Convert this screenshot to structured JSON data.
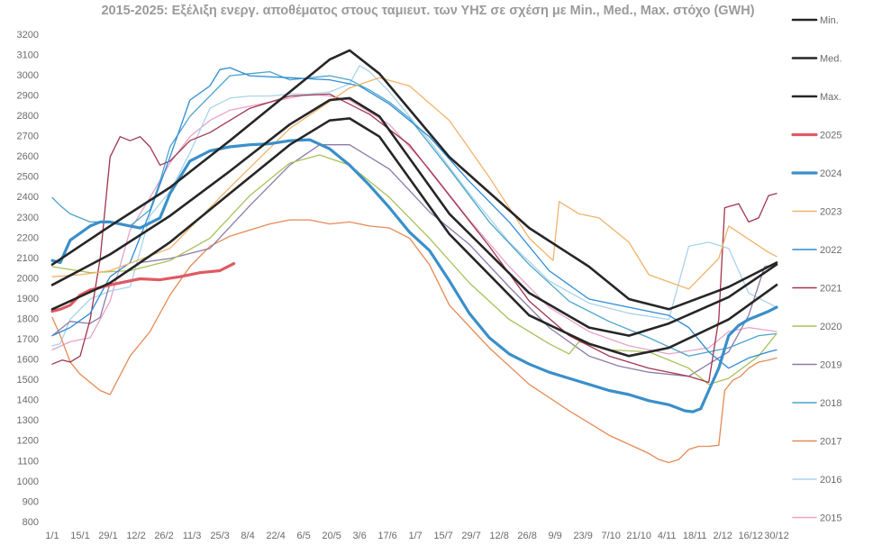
{
  "chart_data": {
    "type": "line",
    "title": "2015-2025: Εξέλιξη ενεργ. αποθέματος στους ταμιευτ. των ΥΗΣ σε σχέση με Min., Med., Max. στόχο (GWH)",
    "xlabel": "",
    "ylabel": "",
    "ylim": [
      800,
      3200
    ],
    "y_ticks": [
      800,
      900,
      1000,
      1100,
      1200,
      1300,
      1400,
      1500,
      1600,
      1700,
      1800,
      1900,
      2000,
      2100,
      2200,
      2300,
      2400,
      2500,
      2600,
      2700,
      2800,
      2900,
      3000,
      3100,
      3200
    ],
    "x_unit": "day of year",
    "xlim": [
      1,
      364
    ],
    "x_ticks": [
      {
        "day": 1,
        "label": "1/1"
      },
      {
        "day": 15,
        "label": "15/1"
      },
      {
        "day": 29,
        "label": "29/1"
      },
      {
        "day": 43,
        "label": "12/2"
      },
      {
        "day": 57,
        "label": "26/2"
      },
      {
        "day": 71,
        "label": "11/3"
      },
      {
        "day": 85,
        "label": "25/3"
      },
      {
        "day": 99,
        "label": "8/4"
      },
      {
        "day": 113,
        "label": "22/4"
      },
      {
        "day": 127,
        "label": "6/5"
      },
      {
        "day": 141,
        "label": "20/5"
      },
      {
        "day": 155,
        "label": "3/6"
      },
      {
        "day": 169,
        "label": "17/6"
      },
      {
        "day": 183,
        "label": "1/7"
      },
      {
        "day": 197,
        "label": "15/7"
      },
      {
        "day": 211,
        "label": "29/7"
      },
      {
        "day": 225,
        "label": "12/8"
      },
      {
        "day": 239,
        "label": "26/8"
      },
      {
        "day": 253,
        "label": "9/9"
      },
      {
        "day": 267,
        "label": "23/9"
      },
      {
        "day": 281,
        "label": "7/10"
      },
      {
        "day": 295,
        "label": "21/10"
      },
      {
        "day": 309,
        "label": "4/11"
      },
      {
        "day": 323,
        "label": "18/11"
      },
      {
        "day": 337,
        "label": "2/12"
      },
      {
        "day": 351,
        "label": "16/12"
      },
      {
        "day": 364,
        "label": "30/12"
      }
    ],
    "legend_position": "right",
    "series": [
      {
        "name": "Min.",
        "color": "#262626",
        "width": 2.6,
        "x": [
          1,
          30,
          60,
          90,
          120,
          140,
          150,
          165,
          200,
          240,
          270,
          290,
          310,
          340,
          364
        ],
        "values": [
          1850,
          1980,
          2180,
          2420,
          2660,
          2780,
          2790,
          2700,
          2220,
          1820,
          1680,
          1620,
          1660,
          1800,
          1970
        ]
      },
      {
        "name": "Med.",
        "color": "#262626",
        "width": 2.6,
        "x": [
          1,
          30,
          60,
          90,
          120,
          140,
          150,
          165,
          200,
          240,
          270,
          290,
          310,
          340,
          364
        ],
        "values": [
          1970,
          2120,
          2310,
          2530,
          2760,
          2880,
          2890,
          2800,
          2320,
          1930,
          1760,
          1720,
          1780,
          1910,
          2070
        ]
      },
      {
        "name": "Max.",
        "color": "#262626",
        "width": 2.6,
        "x": [
          1,
          30,
          60,
          90,
          120,
          140,
          150,
          165,
          200,
          240,
          270,
          290,
          310,
          340,
          364
        ],
        "values": [
          2070,
          2260,
          2450,
          2680,
          2920,
          3080,
          3125,
          3010,
          2600,
          2250,
          2060,
          1900,
          1850,
          1960,
          2080
        ]
      },
      {
        "name": "2025",
        "color": "#e05a63",
        "width": 3.2,
        "x": [
          1,
          5,
          10,
          15,
          20,
          30,
          45,
          55,
          65,
          75,
          85,
          92
        ],
        "values": [
          1840,
          1850,
          1870,
          1920,
          1945,
          1970,
          2000,
          1995,
          2010,
          2030,
          2040,
          2075
        ]
      },
      {
        "name": "2024",
        "color": "#3a8fc9",
        "width": 3.2,
        "x": [
          1,
          5,
          10,
          20,
          25,
          30,
          40,
          45,
          55,
          60,
          70,
          80,
          90,
          100,
          110,
          120,
          130,
          140,
          150,
          160,
          170,
          180,
          190,
          200,
          210,
          220,
          230,
          240,
          250,
          260,
          270,
          280,
          290,
          300,
          310,
          318,
          322,
          326,
          330,
          335,
          340,
          345,
          350,
          355,
          360,
          364
        ],
        "values": [
          2090,
          2080,
          2190,
          2260,
          2280,
          2280,
          2260,
          2250,
          2300,
          2420,
          2580,
          2630,
          2650,
          2660,
          2665,
          2680,
          2685,
          2640,
          2560,
          2460,
          2350,
          2230,
          2140,
          1990,
          1830,
          1710,
          1630,
          1580,
          1540,
          1510,
          1480,
          1450,
          1430,
          1400,
          1380,
          1350,
          1345,
          1360,
          1450,
          1560,
          1720,
          1770,
          1800,
          1820,
          1840,
          1860
        ]
      },
      {
        "name": "2023",
        "color": "#f0b36a",
        "width": 1.3,
        "x": [
          1,
          15,
          30,
          60,
          90,
          120,
          150,
          165,
          180,
          200,
          220,
          240,
          252,
          255,
          265,
          275,
          290,
          300,
          320,
          335,
          340,
          360,
          364
        ],
        "values": [
          2010,
          2020,
          2040,
          2150,
          2450,
          2740,
          2940,
          2990,
          2950,
          2780,
          2500,
          2200,
          2090,
          2380,
          2320,
          2300,
          2180,
          2020,
          1950,
          2100,
          2260,
          2130,
          2110
        ]
      },
      {
        "name": "2022",
        "color": "#2e8bd6",
        "width": 1.3,
        "x": [
          1,
          10,
          20,
          30,
          40,
          50,
          60,
          70,
          80,
          85,
          90,
          100,
          120,
          140,
          155,
          170,
          190,
          210,
          230,
          250,
          270,
          290,
          310,
          320,
          330,
          340,
          350,
          360,
          364
        ],
        "values": [
          1720,
          1760,
          1830,
          2010,
          2080,
          2330,
          2600,
          2880,
          2950,
          3030,
          3040,
          3000,
          2990,
          2980,
          2950,
          2860,
          2700,
          2480,
          2280,
          2040,
          1900,
          1860,
          1820,
          1760,
          1640,
          1560,
          1610,
          1640,
          1650
        ]
      },
      {
        "name": "2021",
        "color": "#a1344d",
        "width": 1.3,
        "x": [
          1,
          6,
          10,
          15,
          20,
          25,
          30,
          35,
          40,
          45,
          50,
          55,
          60,
          70,
          80,
          100,
          120,
          140,
          160,
          180,
          200,
          220,
          240,
          260,
          280,
          300,
          320,
          330,
          335,
          338,
          345,
          350,
          355,
          360,
          364
        ],
        "values": [
          1580,
          1600,
          1590,
          1620,
          1800,
          2100,
          2600,
          2700,
          2680,
          2700,
          2650,
          2560,
          2580,
          2680,
          2720,
          2840,
          2900,
          2910,
          2810,
          2660,
          2410,
          2160,
          1890,
          1720,
          1620,
          1560,
          1520,
          1490,
          1800,
          2350,
          2370,
          2280,
          2300,
          2410,
          2420
        ]
      },
      {
        "name": "2020",
        "color": "#a5c25a",
        "width": 1.3,
        "x": [
          1,
          20,
          40,
          60,
          80,
          100,
          120,
          135,
          150,
          170,
          190,
          210,
          230,
          250,
          260,
          265,
          280,
          300,
          320,
          330,
          340,
          355,
          364
        ],
        "values": [
          2060,
          2030,
          2040,
          2090,
          2200,
          2410,
          2570,
          2610,
          2560,
          2400,
          2200,
          1980,
          1800,
          1680,
          1630,
          1690,
          1650,
          1640,
          1560,
          1480,
          1510,
          1620,
          1730
        ]
      },
      {
        "name": "2019",
        "color": "#8d7aa8",
        "width": 1.3,
        "x": [
          1,
          10,
          20,
          25,
          30,
          45,
          60,
          80,
          100,
          120,
          135,
          150,
          170,
          190,
          210,
          230,
          250,
          270,
          285,
          300,
          320,
          340,
          350,
          358,
          364
        ],
        "values": [
          1720,
          1790,
          1780,
          1810,
          1980,
          2080,
          2100,
          2150,
          2360,
          2560,
          2660,
          2660,
          2540,
          2330,
          2170,
          1960,
          1760,
          1620,
          1570,
          1540,
          1520,
          1640,
          1820,
          2060,
          2070
        ]
      },
      {
        "name": "2018",
        "color": "#4aa3c9",
        "width": 1.3,
        "x": [
          1,
          5,
          10,
          20,
          30,
          40,
          50,
          55,
          60,
          70,
          80,
          90,
          100,
          110,
          120,
          130,
          140,
          150,
          160,
          170,
          180,
          200,
          220,
          240,
          260,
          280,
          300,
          320,
          340,
          355,
          364
        ],
        "values": [
          2400,
          2360,
          2320,
          2280,
          2280,
          2260,
          2340,
          2480,
          2650,
          2800,
          2900,
          3000,
          3010,
          3020,
          2980,
          2990,
          3000,
          2980,
          2930,
          2870,
          2790,
          2540,
          2280,
          2070,
          1890,
          1790,
          1710,
          1620,
          1660,
          1720,
          1730
        ]
      },
      {
        "name": "2017",
        "color": "#e58a54",
        "width": 1.3,
        "x": [
          1,
          5,
          10,
          15,
          20,
          25,
          30,
          40,
          50,
          60,
          70,
          80,
          90,
          100,
          110,
          120,
          130,
          140,
          150,
          160,
          170,
          180,
          190,
          200,
          220,
          240,
          260,
          280,
          300,
          305,
          310,
          315,
          320,
          325,
          330,
          335,
          338,
          342,
          346,
          350,
          355,
          360,
          364
        ],
        "values": [
          1810,
          1720,
          1590,
          1530,
          1490,
          1450,
          1430,
          1620,
          1740,
          1920,
          2060,
          2160,
          2210,
          2240,
          2270,
          2290,
          2290,
          2270,
          2280,
          2260,
          2250,
          2200,
          2070,
          1870,
          1660,
          1480,
          1350,
          1230,
          1140,
          1110,
          1095,
          1110,
          1160,
          1175,
          1175,
          1180,
          1450,
          1500,
          1520,
          1560,
          1590,
          1600,
          1610
        ]
      },
      {
        "name": "2016",
        "color": "#a9d4ea",
        "width": 1.3,
        "x": [
          1,
          5,
          10,
          20,
          30,
          40,
          50,
          60,
          70,
          80,
          90,
          100,
          110,
          120,
          130,
          140,
          150,
          155,
          160,
          170,
          190,
          210,
          230,
          250,
          270,
          290,
          310,
          320,
          330,
          340,
          350,
          364
        ],
        "values": [
          1670,
          1680,
          1800,
          1900,
          1940,
          1960,
          2310,
          2430,
          2620,
          2840,
          2890,
          2900,
          2900,
          2910,
          2910,
          2920,
          2960,
          3050,
          3020,
          2920,
          2680,
          2420,
          2180,
          1990,
          1880,
          1830,
          1800,
          2160,
          2180,
          2150,
          1930,
          1860
        ]
      },
      {
        "name": "2015",
        "color": "#e6a3c8",
        "width": 1.3,
        "x": [
          1,
          10,
          20,
          30,
          40,
          50,
          60,
          70,
          80,
          90,
          100,
          110,
          120,
          130,
          140,
          150,
          170,
          190,
          210,
          230,
          250,
          270,
          290,
          310,
          330,
          340,
          350,
          364
        ],
        "values": [
          1650,
          1690,
          1710,
          1890,
          2240,
          2400,
          2570,
          2700,
          2780,
          2830,
          2850,
          2870,
          2890,
          2910,
          2900,
          2880,
          2760,
          2540,
          2290,
          2060,
          1860,
          1740,
          1670,
          1630,
          1660,
          1740,
          1760,
          1740
        ]
      }
    ]
  }
}
